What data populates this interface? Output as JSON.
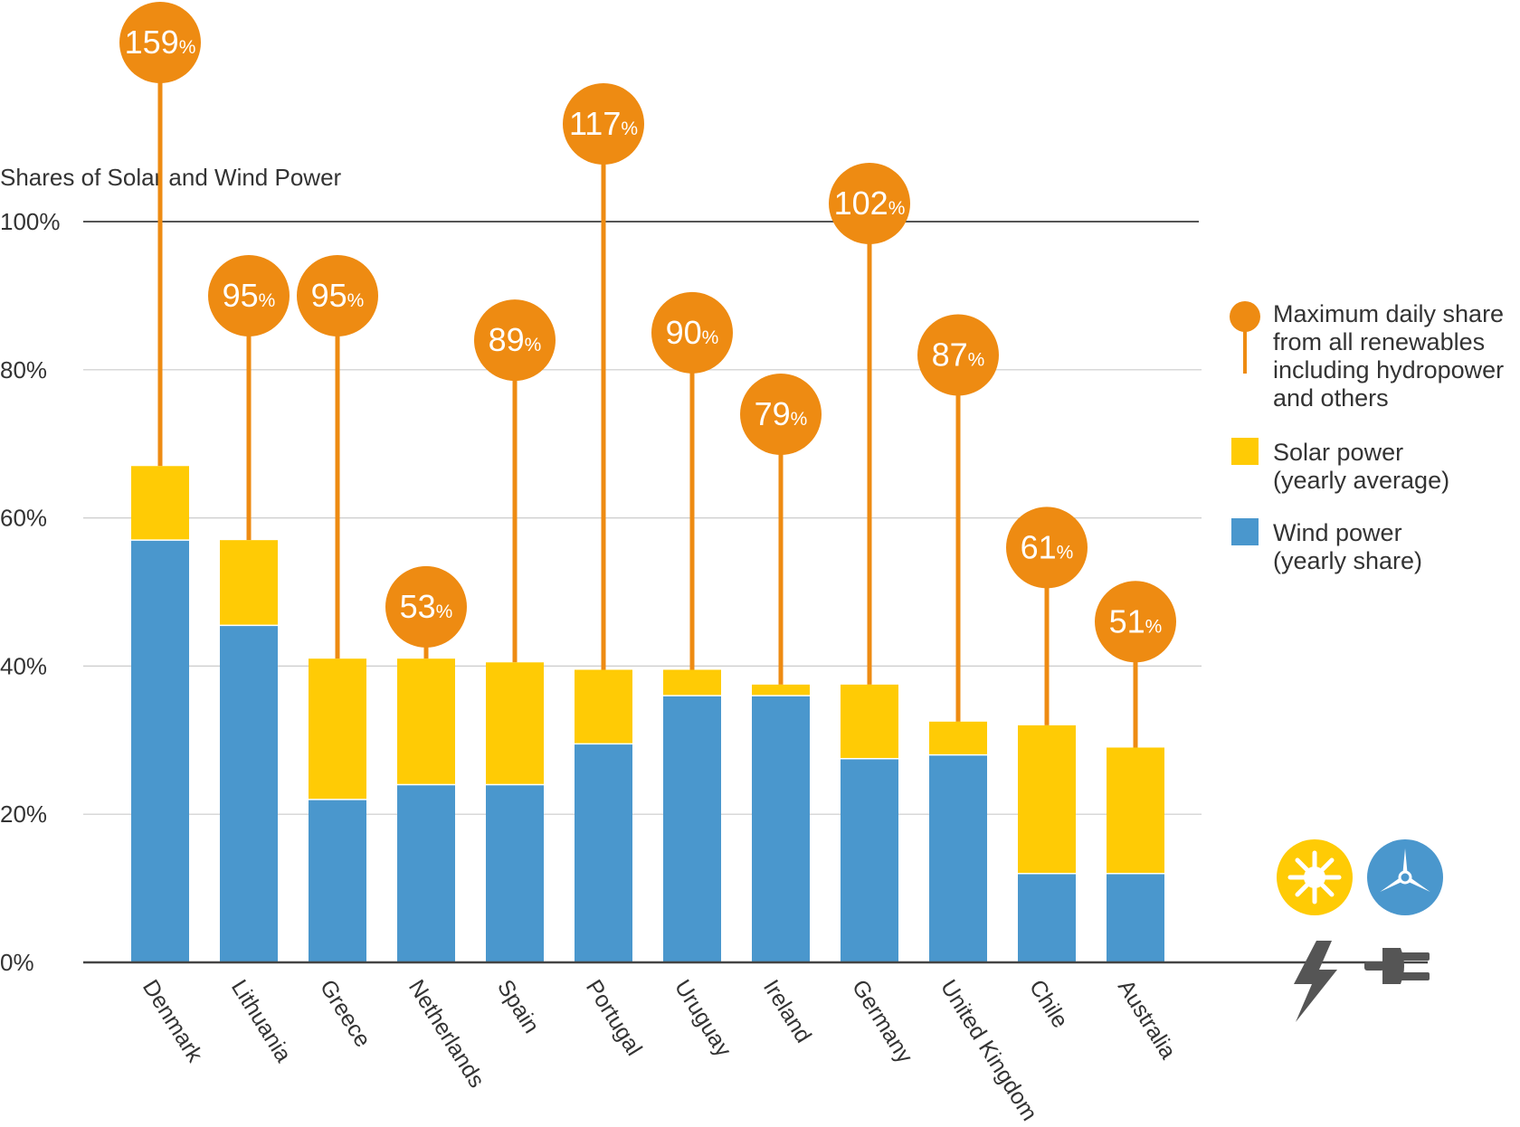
{
  "chart_data": {
    "type": "bar",
    "stacked": true,
    "ylabel": "Shares of Solar and Wind Power",
    "ylim": [
      0,
      100
    ],
    "yticks": [
      "0%",
      "20%",
      "40%",
      "60%",
      "80%",
      "100%"
    ],
    "categories": [
      "Denmark",
      "Lithuania",
      "Greece",
      "Netherlands",
      "Spain",
      "Portugal",
      "Uruguay",
      "Ireland",
      "Germany",
      "United Kingdom",
      "Chile",
      "Australia"
    ],
    "series": [
      {
        "name": "Wind power (yearly share)",
        "color": "#4a97cd",
        "values": [
          57,
          45.5,
          22,
          24,
          24,
          29.5,
          36,
          36,
          27.5,
          28,
          12,
          12
        ]
      },
      {
        "name": "Solar power (yearly average)",
        "color": "#ffcb05",
        "values": [
          10,
          11.5,
          19,
          17,
          16.5,
          10,
          3.5,
          1.5,
          10,
          4.5,
          20,
          17
        ]
      }
    ],
    "max_daily_share": {
      "name": "Maximum daily share from all renewables including hydropower and others",
      "color": "#ee8b12",
      "values": [
        159,
        95,
        95,
        53,
        89,
        117,
        90,
        79,
        102,
        87,
        61,
        51
      ],
      "labels": [
        "159",
        "95",
        "95",
        "53",
        "89",
        "117",
        "90",
        "79",
        "102",
        "87",
        "61",
        "51"
      ],
      "unit": "%"
    },
    "legend": {
      "position": "right",
      "items": [
        {
          "lines": [
            "Maximum daily share",
            "from all renewables",
            "including hydropower",
            "and others"
          ],
          "icon": "orange-pin"
        },
        {
          "lines": [
            "Solar power",
            "(yearly average)"
          ],
          "icon": "yellow-square"
        },
        {
          "lines": [
            "Wind power",
            "(yearly share)"
          ],
          "icon": "blue-square"
        }
      ]
    },
    "grid": true,
    "icons": [
      "sun-icon",
      "wind-turbine-icon",
      "lightning-bolt-icon",
      "power-plug-icon"
    ]
  }
}
